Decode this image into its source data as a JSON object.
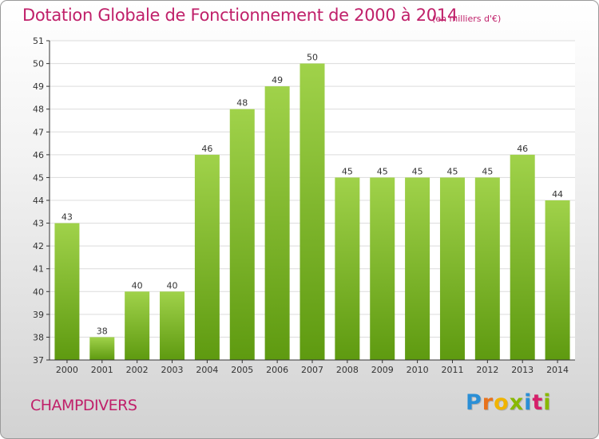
{
  "title": "Dotation Globale de Fonctionnement de 2000 à 2014",
  "unit_note": "(en milliers d'€)",
  "commune": "CHAMPDIVERS",
  "brand": {
    "text": "Proxiti",
    "letter_colors": [
      "#2a8fd6",
      "#e8721c",
      "#f0b400",
      "#88b800",
      "#2a8fd6",
      "#d6206a",
      "#88b800"
    ]
  },
  "colors": {
    "title": "#c0206a",
    "bar_top": "#a0d24a",
    "bar_bottom": "#5e9a10",
    "grid": "#dcdcdc",
    "axis": "#333333",
    "label": "#333333"
  },
  "chart_data": {
    "type": "bar",
    "title": "Dotation Globale de Fonctionnement de 2000 à 2014",
    "xlabel": "",
    "ylabel": "",
    "categories": [
      "2000",
      "2001",
      "2002",
      "2003",
      "2004",
      "2005",
      "2006",
      "2007",
      "2008",
      "2009",
      "2010",
      "2011",
      "2012",
      "2013",
      "2014"
    ],
    "values": [
      43,
      38,
      40,
      40,
      46,
      48,
      49,
      50,
      45,
      45,
      45,
      45,
      45,
      46,
      44
    ],
    "ylim": [
      37,
      51
    ],
    "yticks": [
      37,
      38,
      39,
      40,
      41,
      42,
      43,
      44,
      45,
      46,
      47,
      48,
      49,
      50,
      51
    ],
    "grid": true,
    "data_labels": true
  }
}
